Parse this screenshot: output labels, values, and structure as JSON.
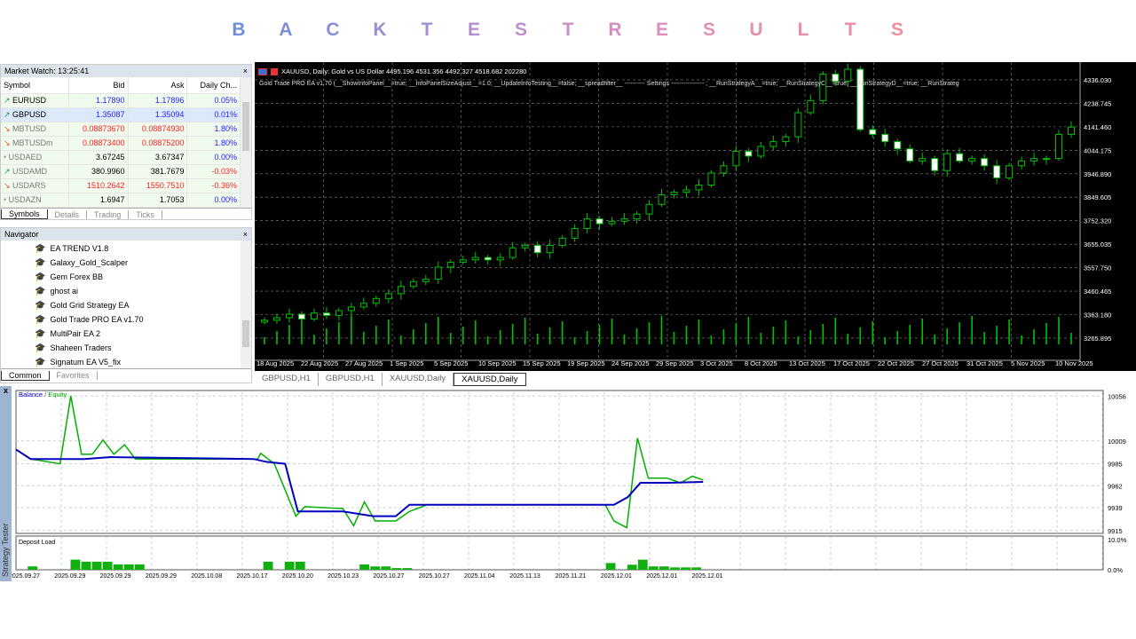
{
  "title_letters": [
    "B",
    "A",
    "C",
    "K",
    "T",
    "E",
    "S",
    "T",
    "R",
    "E",
    "S",
    "U",
    "L",
    "T",
    "S"
  ],
  "title_colors": [
    "#6f8fd8",
    "#7c8fd6",
    "#8a8fd4",
    "#988fd2",
    "#a58fd0",
    "#b38fce",
    "#c08fcb",
    "#c98fc6",
    "#d38fc1",
    "#dc8fbb",
    "#e08fb4",
    "#e48fae",
    "#e78ea7",
    "#ea8ea1",
    "#ee8d9b"
  ],
  "market_watch": {
    "title": "Market Watch: 13:25:41",
    "close": "×",
    "columns": [
      "Symbol",
      "Bid",
      "Ask",
      "Daily Ch..."
    ],
    "rows": [
      {
        "dir": "up",
        "symbol": "EURUSD",
        "bid": "1.17890",
        "ask": "1.17896",
        "change": "0.05%",
        "color": "#2222ff",
        "chcolor": "#2222ff"
      },
      {
        "dir": "up",
        "symbol": "GBPUSD",
        "bid": "1.35087",
        "ask": "1.35094",
        "change": "0.01%",
        "color": "#2222ff",
        "chcolor": "#2222ff",
        "selected": true
      },
      {
        "dir": "down",
        "symbol": "MBTUSD",
        "bid": "0.08873670",
        "ask": "0.08874930",
        "change": "1.80%",
        "color": "#ff2020",
        "chcolor": "#2222ff"
      },
      {
        "dir": "down",
        "symbol": "MBTUSDm",
        "bid": "0.08873400",
        "ask": "0.08875200",
        "change": "1.80%",
        "color": "#ff2020",
        "chcolor": "#2222ff"
      },
      {
        "dir": "none",
        "symbol": "USDAED",
        "bid": "3.67245",
        "ask": "3.67347",
        "change": "0.00%",
        "color": "#000",
        "chcolor": "#2222ff"
      },
      {
        "dir": "up",
        "symbol": "USDAMD",
        "bid": "380.9960",
        "ask": "381.7679",
        "change": "-0.03%",
        "color": "#000",
        "chcolor": "#ff2020"
      },
      {
        "dir": "down",
        "symbol": "USDARS",
        "bid": "1510.2642",
        "ask": "1550.7510",
        "change": "-0.36%",
        "color": "#ff2020",
        "chcolor": "#ff2020"
      },
      {
        "dir": "none",
        "symbol": "USDAZN",
        "bid": "1.6947",
        "ask": "1.7053",
        "change": "0.00%",
        "color": "#000",
        "chcolor": "#2222ff"
      }
    ],
    "tabs": [
      "Symbols",
      "Details",
      "Trading",
      "Ticks"
    ]
  },
  "navigator": {
    "title": "Navigator",
    "close": "×",
    "items": [
      "EA TREND V1.8",
      "Galaxy_Gold_Scalper",
      "Gem Forex BB",
      "ghost ai",
      "Gold Grid Strategy EA",
      "Gold Trade PRO EA v1.70",
      "MultiPair EA 2",
      "Shaheen Traders",
      "Signatum EA V5_fix"
    ],
    "tabs": [
      "Common",
      "Favorites"
    ]
  },
  "chart": {
    "info": "XAUUSD, Daily:  Gold vs US Dollar  4495.196 4531.356 4492.327 4518.682  202280",
    "ea_line": "Gold Trade PRO EA v1.70 (__ShowInfoPanel__=true; __InfoPanelSizeAdjust__=1.0; __UpdateInfoTesting__=false; __spreadfilter__ ---------- Settings ---------------- ; __RunStrategyA__=true; __RunStrategyC__=true; __RunStrategyD__=true; __RunStrateg",
    "price_labels": [
      "4336.030",
      "4238.745",
      "4141.460",
      "4044.175",
      "3946.890",
      "3849.605",
      "3752.320",
      "3655.035",
      "3557.750",
      "3460.465",
      "3363.180",
      "3265.895"
    ],
    "price_range": [
      3240,
      4380
    ],
    "date_labels": [
      "18 Aug 2025",
      "22 Aug 2025",
      "27 Aug 2025",
      "1 Sep 2025",
      "5 Sep 2025",
      "10 Sep 2025",
      "15 Sep 2025",
      "19 Sep 2025",
      "24 Sep 2025",
      "29 Sep 2025",
      "3 Oct 2025",
      "8 Oct 2025",
      "13 Oct 2025",
      "17 Oct 2025",
      "22 Oct 2025",
      "27 Oct 2025",
      "31 Oct 2025",
      "5 Nov 2025",
      "10 Nov 2025"
    ],
    "closes": [
      3340,
      3350,
      3365,
      3345,
      3370,
      3360,
      3380,
      3395,
      3410,
      3430,
      3450,
      3480,
      3500,
      3510,
      3560,
      3580,
      3590,
      3600,
      3590,
      3600,
      3640,
      3650,
      3620,
      3650,
      3680,
      3720,
      3760,
      3740,
      3750,
      3760,
      3780,
      3820,
      3860,
      3870,
      3880,
      3900,
      3950,
      3980,
      4040,
      4020,
      4060,
      4080,
      4100,
      4200,
      4250,
      4360,
      4330,
      4380,
      4130,
      4110,
      4080,
      4050,
      4000,
      4010,
      3960,
      4030,
      4000,
      4010,
      3980,
      3930,
      3980,
      4000,
      4010,
      4010,
      4110,
      4140
    ],
    "bull_color": "#00c000",
    "bear_color": "#ffffff",
    "tabs": [
      "GBPUSD,H1",
      "GBPUSD,H1",
      "XAUUSD,Daily",
      "XAUUSD,Daily"
    ],
    "active_tab": 3
  },
  "tester": {
    "side_label": "Strategy Tester",
    "close": "x",
    "legend_balance": "Balance",
    "legend_sep": " / ",
    "legend_equity": "Equity",
    "balance_color": "#0000c0",
    "equity_color": "#00b000",
    "y_labels": [
      "10056",
      "10009",
      "9985",
      "9962",
      "9939",
      "9915"
    ],
    "y_range": [
      9912,
      10060
    ],
    "equity": [
      [
        0,
        10000
      ],
      [
        1.5,
        9990
      ],
      [
        4.5,
        9985
      ],
      [
        5.6,
        10056
      ],
      [
        6.7,
        9995
      ],
      [
        7.8,
        9995
      ],
      [
        8.9,
        10010
      ],
      [
        10,
        9995
      ],
      [
        11.1,
        10005
      ],
      [
        12.2,
        9990
      ],
      [
        24.7,
        9990
      ],
      [
        25,
        9996
      ],
      [
        26.4,
        9985
      ],
      [
        28.6,
        9930
      ],
      [
        29.5,
        9940
      ],
      [
        33.4,
        9938
      ],
      [
        34.5,
        9920
      ],
      [
        35.6,
        9945
      ],
      [
        36.7,
        9925
      ],
      [
        38.8,
        9925
      ],
      [
        40.2,
        9935
      ],
      [
        42,
        9942
      ],
      [
        60.2,
        9942
      ],
      [
        61.1,
        9925
      ],
      [
        62.4,
        9918
      ],
      [
        63.5,
        10012
      ],
      [
        64.6,
        9970
      ],
      [
        66.5,
        9970
      ],
      [
        67.9,
        9965
      ],
      [
        69.1,
        9972
      ],
      [
        70.2,
        9968
      ]
    ],
    "balance": [
      [
        0,
        10000
      ],
      [
        1.5,
        9990
      ],
      [
        7,
        9990
      ],
      [
        9.7,
        9992
      ],
      [
        24.3,
        9990
      ],
      [
        25.6,
        9987
      ],
      [
        27.5,
        9985
      ],
      [
        28.8,
        9935
      ],
      [
        33.4,
        9935
      ],
      [
        36.5,
        9930
      ],
      [
        38.8,
        9930
      ],
      [
        40.2,
        9942
      ],
      [
        61.1,
        9942
      ],
      [
        62.5,
        9950
      ],
      [
        63.8,
        9965
      ],
      [
        66.5,
        9965
      ],
      [
        70.2,
        9966
      ]
    ],
    "x_max": 70,
    "deposit_load_label": "Deposit Load",
    "load_labels": [
      "10.0%",
      "0.0%"
    ],
    "load": [
      [
        1,
        1
      ],
      [
        5,
        3
      ],
      [
        6,
        2.4
      ],
      [
        7,
        2.4
      ],
      [
        8,
        2.4
      ],
      [
        9,
        1.6
      ],
      [
        10,
        1.6
      ],
      [
        11,
        1.6
      ],
      [
        23,
        2.4
      ],
      [
        25,
        2.4
      ],
      [
        26,
        2.4
      ],
      [
        32,
        1.6
      ],
      [
        33,
        1
      ],
      [
        34,
        1
      ],
      [
        35,
        0.5
      ],
      [
        36,
        0.5
      ],
      [
        55,
        2
      ],
      [
        57,
        1.5
      ],
      [
        58,
        3
      ],
      [
        59,
        1
      ],
      [
        60,
        1
      ],
      [
        61,
        0.7
      ],
      [
        62,
        0.7
      ],
      [
        63,
        0.7
      ]
    ],
    "load_slots": 64,
    "dates": [
      "2025.09.27",
      "2025.09.29",
      "2025.09.29",
      "2025.09.29",
      "2025.10.08",
      "2025.10.17",
      "2025.10.20",
      "2025.10.23",
      "2025.10.27",
      "2025.10.27",
      "2025.11.04",
      "2025.11.13",
      "2025.11.21",
      "2025.12.01",
      "2025.12.01",
      "2025.12.01"
    ]
  }
}
